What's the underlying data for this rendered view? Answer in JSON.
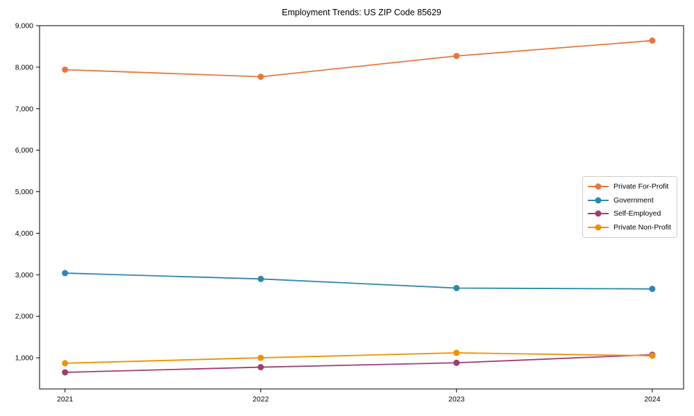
{
  "chart_data": {
    "type": "line",
    "title": "Employment Trends: US ZIP Code 85629",
    "xlabel": "",
    "ylabel": "",
    "grid": false,
    "legend_position": "center-right",
    "categories": [
      "2021",
      "2022",
      "2023",
      "2024"
    ],
    "x_values": [
      2021,
      2022,
      2023,
      2024
    ],
    "series": [
      {
        "name": "Private For-Profit",
        "color": "#E8763C",
        "values": [
          7940,
          7770,
          8270,
          8640
        ]
      },
      {
        "name": "Government",
        "color": "#2E86AB",
        "values": [
          3040,
          2900,
          2680,
          2660
        ]
      },
      {
        "name": "Self-Employed",
        "color": "#A23B72",
        "values": [
          650,
          775,
          880,
          1075
        ]
      },
      {
        "name": "Private Non-Profit",
        "color": "#F18F01",
        "values": [
          870,
          1000,
          1120,
          1050
        ]
      }
    ],
    "y_ticks": [
      {
        "v": 1000,
        "label": "1,000"
      },
      {
        "v": 2000,
        "label": "2,000"
      },
      {
        "v": 3000,
        "label": "3,000"
      },
      {
        "v": 4000,
        "label": "4,000"
      },
      {
        "v": 5000,
        "label": "5,000"
      },
      {
        "v": 6000,
        "label": "6,000"
      },
      {
        "v": 7000,
        "label": "7,000"
      },
      {
        "v": 8000,
        "label": "8,000"
      },
      {
        "v": 9000,
        "label": "9,000"
      }
    ],
    "ylim": [
      250,
      9000
    ],
    "xlim": [
      2020.87,
      2024.16
    ]
  }
}
